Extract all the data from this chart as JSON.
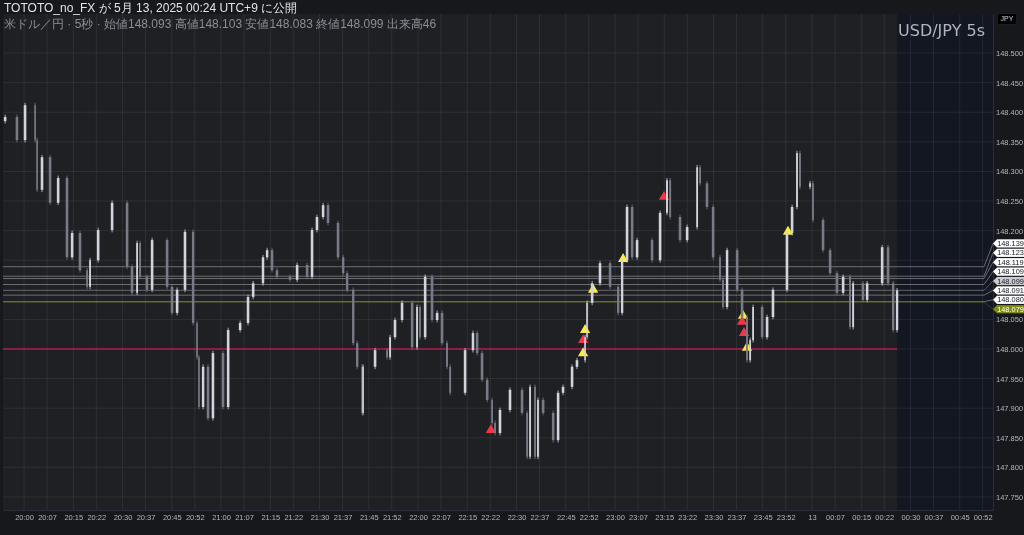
{
  "chart_data": {
    "type": "candlestick",
    "title": "USD/JPY 5s",
    "subtitle": "米ドル／円 · 5秒 · 始値148.093 高値148.103 安値148.083 終値148.099 出来高46",
    "ylabel": "JPY",
    "annotations": [
      "TOTOTO_no_FX が 5月 13, 2025 00:24 UTC+9 に公開"
    ],
    "marker": "triangle",
    "grid": true,
    "legend": "right",
    "xlim": [
      "2025-05-12T19:53:35",
      "2025-05-13T00:55:08"
    ],
    "ylim": [
      147.728,
      148.566
    ],
    "xticks": [
      {
        "value": "2025-05-12T20:00",
        "label": "20:00"
      },
      {
        "value": "2025-05-12T20:07",
        "label": "20:07"
      },
      {
        "value": "2025-05-12T20:15",
        "label": "20:15"
      },
      {
        "value": "2025-05-12T20:22",
        "label": "20:22"
      },
      {
        "value": "2025-05-12T20:30",
        "label": "20:30"
      },
      {
        "value": "2025-05-12T20:37",
        "label": "20:37"
      },
      {
        "value": "2025-05-12T20:45",
        "label": "20:45"
      },
      {
        "value": "2025-05-12T20:52",
        "label": "20:52"
      },
      {
        "value": "2025-05-12T21:00",
        "label": "21:00"
      },
      {
        "value": "2025-05-12T21:07",
        "label": "21:07"
      },
      {
        "value": "2025-05-12T21:15",
        "label": "21:15"
      },
      {
        "value": "2025-05-12T21:22",
        "label": "21:22"
      },
      {
        "value": "2025-05-12T21:30",
        "label": "21:30"
      },
      {
        "value": "2025-05-12T21:37",
        "label": "21:37"
      },
      {
        "value": "2025-05-12T21:45",
        "label": "21:45"
      },
      {
        "value": "2025-05-12T21:52",
        "label": "21:52"
      },
      {
        "value": "2025-05-12T22:00",
        "label": "22:00"
      },
      {
        "value": "2025-05-12T22:07",
        "label": "22:07"
      },
      {
        "value": "2025-05-12T22:15",
        "label": "22:15"
      },
      {
        "value": "2025-05-12T22:22",
        "label": "22:22"
      },
      {
        "value": "2025-05-12T22:30",
        "label": "22:30"
      },
      {
        "value": "2025-05-12T22:37",
        "label": "22:37"
      },
      {
        "value": "2025-05-12T22:45",
        "label": "22:45"
      },
      {
        "value": "2025-05-12T22:52",
        "label": "22:52"
      },
      {
        "value": "2025-05-12T23:00",
        "label": "23:00"
      },
      {
        "value": "2025-05-12T23:07",
        "label": "23:07"
      },
      {
        "value": "2025-05-12T23:15",
        "label": "23:15"
      },
      {
        "value": "2025-05-12T23:22",
        "label": "23:22"
      },
      {
        "value": "2025-05-12T23:30",
        "label": "23:30"
      },
      {
        "value": "2025-05-12T23:37",
        "label": "23:37"
      },
      {
        "value": "2025-05-12T23:45",
        "label": "23:45"
      },
      {
        "value": "2025-05-12T23:52",
        "label": "23:52"
      },
      {
        "value": "2025-05-13T00:00",
        "label": "13"
      },
      {
        "value": "2025-05-13T00:07",
        "label": "00:07"
      },
      {
        "value": "2025-05-13T00:15",
        "label": "00:15"
      },
      {
        "value": "2025-05-13T00:22",
        "label": "00:22"
      },
      {
        "value": "2025-05-13T00:30",
        "label": "00:30"
      },
      {
        "value": "2025-05-13T00:37",
        "label": "00:37"
      },
      {
        "value": "2025-05-13T00:45",
        "label": "00:45"
      },
      {
        "value": "2025-05-13T00:52",
        "label": "00:52"
      }
    ],
    "yticks": [
      {
        "value": 147.75,
        "label": "147.750"
      },
      {
        "value": 147.8,
        "label": "147.800"
      },
      {
        "value": 147.85,
        "label": "147.850"
      },
      {
        "value": 147.9,
        "label": "147.900"
      },
      {
        "value": 147.95,
        "label": "147.950"
      },
      {
        "value": 148.0,
        "label": "148.000"
      },
      {
        "value": 148.05,
        "label": "148.050"
      },
      {
        "value": 148.1,
        "label": null
      },
      {
        "value": 148.15,
        "label": null
      },
      {
        "value": 148.2,
        "label": "148.200"
      },
      {
        "value": 148.25,
        "label": "148.250"
      },
      {
        "value": 148.3,
        "label": "148.300"
      },
      {
        "value": 148.35,
        "label": "148.350"
      },
      {
        "value": 148.4,
        "label": "148.400"
      },
      {
        "value": 148.45,
        "label": "148.450"
      },
      {
        "value": 148.5,
        "label": "148.500"
      }
    ],
    "x": [
      "2025-05-12T19:54:14",
      "2025-05-12T19:57:50",
      "2025-05-12T20:00:18",
      "2025-05-12T20:03:22",
      "2025-05-12T20:03:58",
      "2025-05-12T20:05:28",
      "2025-05-12T20:07:55",
      "2025-05-12T20:10:23",
      "2025-05-12T20:13:05",
      "2025-05-12T20:14:38",
      "2025-05-12T20:17:02",
      "2025-05-12T20:19:12",
      "2025-05-12T20:20:06",
      "2025-05-12T20:22:34",
      "2025-05-12T20:26:49",
      "2025-05-12T20:31:23",
      "2025-05-12T20:32:53",
      "2025-05-12T20:34:26",
      "2025-05-12T20:35:20",
      "2025-05-12T20:37:26",
      "2025-05-12T20:39:00",
      "2025-05-12T20:43:34",
      "2025-05-12T20:45:04",
      "2025-05-12T20:46:37",
      "2025-05-12T20:49:01",
      "2025-05-12T20:51:29",
      "2025-05-12T20:52:41",
      "2025-05-12T20:53:17",
      "2025-05-12T20:54:32",
      "2025-05-12T20:56:02",
      "2025-05-12T20:57:32",
      "2025-05-12T21:00:36",
      "2025-05-12T21:02:10",
      "2025-05-12T21:05:49",
      "2025-05-12T21:08:13",
      "2025-05-12T21:09:47",
      "2025-05-12T21:12:47",
      "2025-05-12T21:14:02",
      "2025-05-12T21:15:32",
      "2025-05-12T21:17:02",
      "2025-05-12T21:21:00",
      "2025-05-12T21:23:10",
      "2025-05-12T21:26:13",
      "2025-05-12T21:27:43",
      "2025-05-12T21:29:13",
      "2025-05-12T21:31:05",
      "2025-05-12T21:32:35",
      "2025-05-12T21:35:38",
      "2025-05-12T21:37:12",
      "2025-05-12T21:38:24",
      "2025-05-12T21:40:16",
      "2025-05-12T21:41:28",
      "2025-05-12T21:42:58",
      "2025-05-12T21:43:16",
      "2025-05-12T21:46:55",
      "2025-05-12T21:50:35",
      "2025-05-12T21:51:29",
      "2025-05-12T21:52:59",
      "2025-05-12T21:55:08",
      "2025-05-12T21:58:12",
      "2025-05-12T21:59:42",
      "2025-05-12T22:00:36",
      "2025-05-12T22:02:10",
      "2025-05-12T22:04:16",
      "2025-05-12T22:05:49",
      "2025-05-12T22:07:19",
      "2025-05-12T22:08:49",
      "2025-05-12T22:09:47",
      "2025-05-12T22:14:20",
      "2025-05-12T22:16:44",
      "2025-05-12T22:18:00",
      "2025-05-12T22:19:30",
      "2025-05-12T22:21:04",
      "2025-05-12T22:22:34",
      "2025-05-12T22:23:28",
      "2025-05-12T22:24:58",
      "2025-05-12T22:28:01",
      "2025-05-12T22:31:41",
      "2025-05-12T22:33:14",
      "2025-05-12T22:34:08",
      "2025-05-12T22:35:38",
      "2025-05-12T22:36:32",
      "2025-05-12T22:38:06",
      "2025-05-12T22:41:10",
      "2025-05-12T22:42:40",
      "2025-05-12T22:44:10",
      "2025-05-12T22:46:55",
      "2025-05-12T22:48:25",
      "2025-05-12T22:50:53",
      "2025-05-12T22:51:29",
      "2025-05-12T22:53:02",
      "2025-05-12T22:55:26",
      "2025-05-12T22:58:30",
      "2025-05-12T23:00:58",
      "2025-05-12T23:02:10",
      "2025-05-12T23:03:40",
      "2025-05-12T23:05:13",
      "2025-05-12T23:06:43",
      "2025-05-12T23:11:17",
      "2025-05-12T23:13:44",
      "2025-05-12T23:15:50",
      "2025-05-12T23:16:48",
      "2025-05-12T23:19:48",
      "2025-05-12T23:21:58",
      "2025-05-12T23:25:01",
      "2025-05-12T23:25:55",
      "2025-05-12T23:28:01",
      "2025-05-12T23:29:53",
      "2025-05-12T23:31:59",
      "2025-05-12T23:32:53",
      "2025-05-12T23:34:08",
      "2025-05-12T23:37:12",
      "2025-05-12T23:38:42",
      "2025-05-12T23:40:12",
      "2025-05-12T23:41:10",
      "2025-05-12T23:42:04",
      "2025-05-12T23:44:49",
      "2025-05-12T23:46:19",
      "2025-05-12T23:48:07",
      "2025-05-12T23:52:23",
      "2025-05-12T23:53:56",
      "2025-05-12T23:55:26",
      "2025-05-12T23:56:20",
      "2025-05-12T23:59:24",
      "2025-05-13T00:00:18",
      "2025-05-13T00:03:22",
      "2025-05-13T00:05:31",
      "2025-05-13T00:07:37",
      "2025-05-13T00:09:29",
      "2025-05-13T00:11:35",
      "2025-05-13T00:12:32",
      "2025-05-13T00:15:32",
      "2025-05-13T00:16:48",
      "2025-05-13T00:21:22",
      "2025-05-13T00:23:10",
      "2025-05-13T00:24:43",
      "2025-05-13T00:25:55"
    ],
    "ohlc": [
      [
        148.385,
        148.396,
        148.381,
        148.392
      ],
      [
        148.392,
        148.396,
        148.349,
        148.353
      ],
      [
        148.353,
        148.416,
        148.349,
        148.412
      ],
      [
        148.412,
        148.416,
        148.349,
        148.353
      ],
      [
        148.353,
        148.357,
        148.265,
        148.269
      ],
      [
        148.269,
        148.328,
        148.265,
        148.324
      ],
      [
        148.324,
        148.328,
        148.243,
        148.247
      ],
      [
        148.247,
        148.293,
        148.243,
        148.289
      ],
      [
        148.289,
        148.293,
        148.151,
        148.155
      ],
      [
        148.155,
        148.2,
        148.151,
        148.196
      ],
      [
        148.196,
        148.2,
        148.129,
        148.133
      ],
      [
        148.133,
        148.137,
        148.101,
        148.105
      ],
      [
        148.105,
        148.154,
        148.101,
        148.15
      ],
      [
        148.15,
        148.205,
        148.146,
        148.201
      ],
      [
        148.201,
        148.251,
        148.197,
        148.247
      ],
      [
        148.247,
        148.251,
        148.135,
        148.139
      ],
      [
        148.139,
        148.143,
        148.091,
        148.095
      ],
      [
        148.095,
        148.183,
        148.091,
        148.179
      ],
      [
        148.179,
        148.183,
        148.118,
        148.122
      ],
      [
        148.122,
        148.126,
        148.096,
        148.1
      ],
      [
        148.1,
        148.188,
        148.096,
        148.184
      ],
      [
        148.184,
        148.188,
        148.101,
        148.105
      ],
      [
        148.105,
        148.109,
        148.057,
        148.061
      ],
      [
        148.061,
        148.104,
        148.057,
        148.1
      ],
      [
        148.1,
        148.202,
        148.096,
        148.198
      ],
      [
        148.198,
        148.202,
        148.04,
        148.044
      ],
      [
        148.044,
        148.048,
        147.982,
        147.986
      ],
      [
        147.986,
        147.99,
        147.898,
        147.902
      ],
      [
        147.902,
        147.974,
        147.898,
        147.97
      ],
      [
        147.97,
        147.974,
        147.879,
        147.883
      ],
      [
        147.883,
        147.997,
        147.879,
        147.993
      ],
      [
        147.993,
        147.997,
        147.898,
        147.902
      ],
      [
        147.902,
        148.036,
        147.898,
        148.032
      ],
      [
        148.032,
        148.048,
        148.028,
        148.044
      ],
      [
        148.044,
        148.092,
        148.04,
        148.088
      ],
      [
        148.088,
        148.115,
        148.084,
        148.111
      ],
      [
        148.111,
        148.159,
        148.107,
        148.155
      ],
      [
        148.155,
        148.171,
        148.151,
        148.167
      ],
      [
        148.167,
        148.171,
        148.129,
        148.133
      ],
      [
        148.133,
        148.137,
        148.118,
        148.122
      ],
      [
        148.122,
        148.126,
        148.113,
        148.117
      ],
      [
        148.117,
        148.146,
        148.113,
        148.142
      ],
      [
        148.142,
        148.146,
        148.118,
        148.122
      ],
      [
        148.122,
        148.205,
        148.118,
        148.201
      ],
      [
        148.201,
        148.227,
        148.197,
        148.223
      ],
      [
        148.223,
        148.247,
        148.219,
        148.243
      ],
      [
        148.243,
        148.247,
        148.209,
        148.213
      ],
      [
        148.213,
        148.217,
        148.151,
        148.155
      ],
      [
        148.155,
        148.159,
        148.124,
        148.128
      ],
      [
        148.128,
        148.132,
        148.096,
        148.1
      ],
      [
        148.1,
        148.104,
        148.006,
        148.01
      ],
      [
        148.01,
        148.014,
        147.966,
        147.97
      ],
      [
        147.97,
        147.974,
        147.888,
        147.892
      ],
      [
        147.892,
        147.974,
        147.888,
        147.97
      ],
      [
        147.97,
        148.002,
        147.966,
        147.998
      ],
      [
        147.998,
        148.002,
        147.982,
        147.986
      ],
      [
        147.986,
        148.024,
        147.982,
        148.02
      ],
      [
        148.02,
        148.053,
        148.016,
        148.049
      ],
      [
        148.049,
        148.082,
        148.045,
        148.078
      ],
      [
        148.078,
        148.082,
        147.999,
        148.003
      ],
      [
        148.003,
        148.075,
        147.999,
        148.071
      ],
      [
        148.071,
        148.075,
        148.016,
        148.02
      ],
      [
        148.02,
        148.126,
        148.016,
        148.122
      ],
      [
        148.122,
        148.126,
        148.045,
        148.049
      ],
      [
        148.049,
        148.065,
        148.045,
        148.061
      ],
      [
        148.061,
        148.065,
        148.006,
        148.01
      ],
      [
        148.01,
        148.014,
        147.966,
        147.97
      ],
      [
        147.97,
        147.974,
        147.922,
        147.926
      ],
      [
        147.926,
        148.002,
        147.922,
        147.998
      ],
      [
        147.998,
        148.031,
        147.994,
        148.027
      ],
      [
        148.027,
        148.031,
        147.989,
        147.993
      ],
      [
        147.993,
        147.997,
        147.944,
        147.948
      ],
      [
        147.948,
        147.952,
        147.91,
        147.914
      ],
      [
        147.914,
        147.918,
        147.871,
        147.875
      ],
      [
        147.875,
        147.879,
        147.854,
        147.858
      ],
      [
        147.858,
        147.901,
        147.854,
        147.897
      ],
      [
        147.897,
        147.935,
        147.893,
        147.931
      ],
      [
        147.931,
        147.935,
        147.888,
        147.892
      ],
      [
        147.892,
        147.896,
        147.814,
        147.818
      ],
      [
        147.818,
        147.94,
        147.814,
        147.936
      ],
      [
        147.936,
        147.94,
        147.814,
        147.818
      ],
      [
        147.818,
        147.918,
        147.814,
        147.914
      ],
      [
        147.914,
        147.918,
        147.888,
        147.892
      ],
      [
        147.892,
        147.896,
        147.842,
        147.846
      ],
      [
        147.846,
        147.93,
        147.842,
        147.926
      ],
      [
        147.926,
        147.94,
        147.922,
        147.936
      ],
      [
        147.936,
        147.974,
        147.932,
        147.97
      ],
      [
        147.97,
        147.985,
        147.966,
        147.981
      ],
      [
        147.981,
        148.024,
        147.977,
        148.02
      ],
      [
        148.02,
        148.082,
        148.016,
        148.078
      ],
      [
        148.078,
        148.115,
        148.074,
        148.111
      ],
      [
        148.111,
        148.149,
        148.107,
        148.145
      ],
      [
        148.145,
        148.149,
        148.101,
        148.105
      ],
      [
        148.105,
        148.109,
        148.057,
        148.061
      ],
      [
        148.061,
        148.154,
        148.057,
        148.15
      ],
      [
        148.15,
        148.244,
        148.146,
        148.24
      ],
      [
        148.24,
        148.244,
        148.151,
        148.155
      ],
      [
        148.155,
        148.188,
        148.151,
        148.184
      ],
      [
        148.184,
        148.188,
        148.146,
        148.15
      ],
      [
        148.15,
        148.234,
        148.146,
        148.23
      ],
      [
        148.23,
        148.289,
        148.226,
        148.285
      ],
      [
        148.285,
        148.289,
        148.219,
        148.223
      ],
      [
        148.223,
        148.227,
        148.18,
        148.184
      ],
      [
        148.184,
        148.21,
        148.18,
        148.206
      ],
      [
        148.206,
        148.311,
        148.202,
        148.307
      ],
      [
        148.307,
        148.311,
        148.276,
        148.28
      ],
      [
        148.28,
        148.284,
        148.236,
        148.24
      ],
      [
        148.24,
        148.244,
        148.151,
        148.155
      ],
      [
        148.155,
        148.159,
        148.113,
        148.117
      ],
      [
        148.117,
        148.121,
        148.067,
        148.071
      ],
      [
        148.071,
        148.171,
        148.067,
        148.167
      ],
      [
        148.167,
        148.171,
        148.096,
        148.1
      ],
      [
        148.1,
        148.104,
        148.05,
        148.054
      ],
      [
        148.054,
        148.058,
        147.977,
        147.981
      ],
      [
        147.981,
        148.019,
        147.977,
        148.015
      ],
      [
        148.015,
        148.075,
        148.011,
        148.071
      ],
      [
        148.071,
        148.075,
        148.016,
        148.02
      ],
      [
        148.02,
        148.058,
        148.016,
        148.054
      ],
      [
        148.054,
        148.104,
        148.05,
        148.1
      ],
      [
        148.1,
        148.2,
        148.096,
        148.196
      ],
      [
        148.196,
        148.244,
        148.192,
        148.24
      ],
      [
        148.24,
        148.335,
        148.236,
        148.331
      ],
      [
        148.331,
        148.335,
        148.27,
        148.274
      ],
      [
        148.274,
        148.284,
        148.27,
        148.28
      ],
      [
        148.28,
        148.284,
        148.214,
        148.218
      ],
      [
        148.218,
        148.222,
        148.163,
        148.167
      ],
      [
        148.167,
        148.171,
        148.124,
        148.128
      ],
      [
        148.128,
        148.132,
        148.091,
        148.095
      ],
      [
        148.095,
        148.126,
        148.091,
        148.122
      ],
      [
        148.122,
        148.126,
        148.033,
        148.037
      ],
      [
        148.037,
        148.115,
        148.033,
        148.111
      ],
      [
        148.111,
        148.115,
        148.079,
        148.083
      ],
      [
        148.083,
        148.115,
        148.079,
        148.111
      ],
      [
        148.111,
        148.176,
        148.107,
        148.172
      ],
      [
        148.172,
        148.176,
        148.107,
        148.111
      ],
      [
        148.111,
        148.115,
        148.028,
        148.032
      ],
      [
        148.032,
        148.103,
        148.028,
        148.099
      ]
    ],
    "colors": [
      "#d1d4dc",
      "#787b86",
      "#d1d4dc",
      "#787b86",
      "#787b86",
      "#d1d4dc",
      "#787b86",
      "#d1d4dc",
      "#787b86",
      "#d1d4dc",
      "#787b86",
      "#787b86",
      "#d1d4dc",
      "#d1d4dc",
      "#d1d4dc",
      "#787b86",
      "#787b86",
      "#d1d4dc",
      "#787b86",
      "#787b86",
      "#d1d4dc",
      "#787b86",
      "#787b86",
      "#d1d4dc",
      "#d1d4dc",
      "#787b86",
      "#787b86",
      "#787b86",
      "#d1d4dc",
      "#787b86",
      "#d1d4dc",
      "#787b86",
      "#d1d4dc",
      "#d1d4dc",
      "#d1d4dc",
      "#d1d4dc",
      "#d1d4dc",
      "#d1d4dc",
      "#787b86",
      "#787b86",
      "#787b86",
      "#d1d4dc",
      "#787b86",
      "#d1d4dc",
      "#d1d4dc",
      "#d1d4dc",
      "#787b86",
      "#787b86",
      "#787b86",
      "#787b86",
      "#787b86",
      "#787b86",
      "#787b86",
      "#d1d4dc",
      "#d1d4dc",
      "#787b86",
      "#d1d4dc",
      "#d1d4dc",
      "#d1d4dc",
      "#787b86",
      "#d1d4dc",
      "#787b86",
      "#d1d4dc",
      "#787b86",
      "#d1d4dc",
      "#787b86",
      "#787b86",
      "#787b86",
      "#d1d4dc",
      "#d1d4dc",
      "#787b86",
      "#787b86",
      "#787b86",
      "#787b86",
      "#787b86",
      "#d1d4dc",
      "#d1d4dc",
      "#787b86",
      "#787b86",
      "#d1d4dc",
      "#787b86",
      "#d1d4dc",
      "#787b86",
      "#787b86",
      "#d1d4dc",
      "#d1d4dc",
      "#d1d4dc",
      "#d1d4dc",
      "#d1d4dc",
      "#d1d4dc",
      "#d1d4dc",
      "#d1d4dc",
      "#787b86",
      "#787b86",
      "#d1d4dc",
      "#d1d4dc",
      "#787b86",
      "#d1d4dc",
      "#787b86",
      "#d1d4dc",
      "#d1d4dc",
      "#787b86",
      "#787b86",
      "#d1d4dc",
      "#d1d4dc",
      "#787b86",
      "#787b86",
      "#787b86",
      "#787b86",
      "#787b86",
      "#d1d4dc",
      "#787b86",
      "#787b86",
      "#787b86",
      "#d1d4dc",
      "#d1d4dc",
      "#787b86",
      "#d1d4dc",
      "#d1d4dc",
      "#d1d4dc",
      "#d1d4dc",
      "#d1d4dc",
      "#787b86",
      "#d1d4dc",
      "#787b86",
      "#787b86",
      "#787b86",
      "#787b86",
      "#d1d4dc",
      "#787b86",
      "#d1d4dc",
      "#787b86",
      "#d1d4dc",
      "#d1d4dc",
      "#787b86",
      "#787b86",
      "#d1d4dc"
    ],
    "series": [
      {
        "type": "scatter",
        "color": "#ffeb3b",
        "x": [
          "2025-05-12T22:50:17",
          "2025-05-12T22:50:53",
          "2025-05-12T22:53:20",
          "2025-05-12T23:02:28",
          "2025-05-12T23:39:00",
          "2025-05-12T23:40:12",
          "2025-05-12T23:52:41"
        ],
        "values": [
          147.993,
          148.032,
          148.1,
          148.152,
          148.056,
          148.002,
          148.198
        ]
      },
      {
        "type": "scatter",
        "color": "#f23645",
        "x": [
          "2025-05-12T22:22:12",
          "2025-05-12T22:50:17",
          "2025-05-12T23:14:56",
          "2025-05-12T23:38:42",
          "2025-05-12T23:39:18"
        ],
        "values": [
          147.863,
          148.015,
          148.257,
          148.046,
          148.027
        ]
      }
    ],
    "ref_lines": [
      {
        "axis": "y",
        "value": 148.0,
        "color": "#c2185b"
      },
      {
        "axis": "y",
        "value": 148.139,
        "label": "148.139",
        "color": "#ffffff"
      },
      {
        "axis": "y",
        "value": 148.123,
        "label": "148.123",
        "color": "#ffffff"
      },
      {
        "axis": "y",
        "value": 148.119,
        "label": "148.119",
        "color": "#ffffff"
      },
      {
        "axis": "y",
        "value": 148.109,
        "label": "148.109",
        "color": "#ffffff"
      },
      {
        "axis": "y",
        "value": 148.099,
        "label": "148.099",
        "color": "#c9cbd1"
      },
      {
        "axis": "y",
        "value": 148.091,
        "label": "148.091",
        "color": "#ffffff"
      },
      {
        "axis": "y",
        "value": 148.08,
        "label": "148.080",
        "color": "#ffffff"
      },
      {
        "axis": "y",
        "value": 148.079,
        "label": "148.079",
        "color": "#7e8c14"
      }
    ],
    "bands": [
      {
        "axis": "x",
        "from": "2025-05-13T00:25:55",
        "to": "2025-05-13T00:55:08",
        "color": "#131722"
      }
    ]
  }
}
